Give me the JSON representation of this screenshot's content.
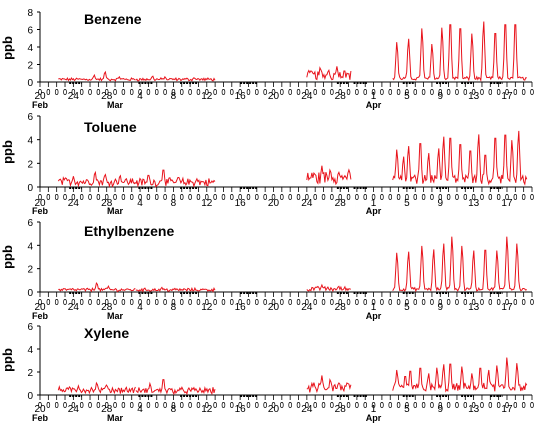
{
  "chart_data": [
    {
      "type": "line",
      "title": "Benzene",
      "ylabel": "ppb",
      "ylim": [
        0,
        8
      ],
      "yticks": [
        0,
        2,
        4,
        6,
        8
      ],
      "x_start_day": 20,
      "x_end_day": 59,
      "xtick_labels": [
        "20",
        "24",
        "28",
        "4",
        "8",
        "12",
        "16",
        "20",
        "24",
        "28",
        "1",
        "5",
        "9",
        "13",
        "17"
      ],
      "xtick_days": [
        20,
        24,
        28,
        32,
        36,
        40,
        44,
        48,
        52,
        56,
        60,
        64,
        68,
        72,
        76
      ],
      "month_labels": [
        "Feb",
        "Mar",
        "Apr"
      ],
      "month_days": [
        20,
        29,
        60
      ],
      "series": [
        {
          "color": "#e8131b",
          "segments": [
            {
              "start": 22.2,
              "end": 31.5,
              "base": 0.25,
              "noise": 0.25,
              "peaks": [
                [
                  26.5,
                  0.8
                ],
                [
                  27.8,
                  1.2
                ],
                [
                  29.5,
                  0.6
                ]
              ]
            },
            {
              "start": 31.5,
              "end": 41.0,
              "base": 0.25,
              "noise": 0.25,
              "peaks": [
                [
                  33.5,
                  0.7
                ],
                [
                  35.0,
                  0.6
                ],
                [
                  38.5,
                  0.5
                ]
              ]
            },
            {
              "start": 52.0,
              "end": 57.3,
              "base": 0.6,
              "noise": 0.8,
              "peaks": [
                [
                  52.6,
                  1.2
                ],
                [
                  53.6,
                  1.7
                ],
                [
                  54.6,
                  1.4
                ],
                [
                  55.6,
                  1.8
                ],
                [
                  56.5,
                  1.4
                ]
              ]
            },
            {
              "start": 62.3,
              "end": 78.5,
              "base": 0.35,
              "noise": 0.3,
              "peaks": [
                [
                  62.8,
                  4.6
                ],
                [
                  64.2,
                  5.0
                ],
                [
                  65.8,
                  6.2
                ],
                [
                  67.0,
                  4.4
                ],
                [
                  68.2,
                  6.3
                ],
                [
                  69.2,
                  7.3
                ],
                [
                  70.4,
                  6.8
                ],
                [
                  71.8,
                  5.6
                ],
                [
                  73.2,
                  7.0
                ],
                [
                  74.6,
                  6.2
                ],
                [
                  75.8,
                  7.3
                ],
                [
                  77.0,
                  7.3
                ]
              ]
            }
          ]
        }
      ]
    },
    {
      "type": "line",
      "title": "Toluene",
      "ylabel": "ppb",
      "ylim": [
        0,
        6
      ],
      "yticks": [
        0,
        2,
        4,
        6
      ],
      "x_start_day": 20,
      "x_end_day": 59,
      "xtick_labels": [
        "20",
        "24",
        "28",
        "4",
        "8",
        "12",
        "16",
        "20",
        "24",
        "28",
        "1",
        "5",
        "9",
        "13",
        "17"
      ],
      "xtick_days": [
        20,
        24,
        28,
        32,
        36,
        40,
        44,
        48,
        52,
        56,
        60,
        64,
        68,
        72,
        76
      ],
      "month_labels": [
        "Feb",
        "Mar",
        "Apr"
      ],
      "month_days": [
        20,
        29,
        60
      ],
      "series": [
        {
          "color": "#e8131b",
          "segments": [
            {
              "start": 22.2,
              "end": 31.5,
              "base": 0.35,
              "noise": 0.5,
              "peaks": [
                [
                  24.0,
                  0.9
                ],
                [
                  26.6,
                  1.3
                ],
                [
                  27.8,
                  1.1
                ],
                [
                  29.6,
                  1.0
                ]
              ]
            },
            {
              "start": 31.5,
              "end": 41.0,
              "base": 0.3,
              "noise": 0.5,
              "peaks": [
                [
                  33.0,
                  1.1
                ],
                [
                  34.8,
                  1.6
                ],
                [
                  36.6,
                  0.9
                ],
                [
                  38.8,
                  0.7
                ]
              ]
            },
            {
              "start": 52.0,
              "end": 57.3,
              "base": 0.6,
              "noise": 0.9,
              "peaks": [
                [
                  52.6,
                  1.2
                ],
                [
                  53.8,
                  1.8
                ],
                [
                  54.8,
                  1.5
                ],
                [
                  55.8,
                  1.3
                ],
                [
                  56.6,
                  1.0
                ]
              ]
            },
            {
              "start": 62.3,
              "end": 78.5,
              "base": 0.5,
              "noise": 0.6,
              "peaks": [
                [
                  62.8,
                  3.2
                ],
                [
                  63.6,
                  2.6
                ],
                [
                  64.2,
                  3.5
                ],
                [
                  65.6,
                  4.1
                ],
                [
                  66.6,
                  2.9
                ],
                [
                  67.8,
                  3.3
                ],
                [
                  68.4,
                  4.3
                ],
                [
                  69.2,
                  4.6
                ],
                [
                  70.4,
                  4.0
                ],
                [
                  71.6,
                  3.4
                ],
                [
                  72.6,
                  4.5
                ],
                [
                  73.4,
                  3.0
                ],
                [
                  74.6,
                  4.6
                ],
                [
                  75.8,
                  4.9
                ],
                [
                  76.6,
                  4.0
                ],
                [
                  77.4,
                  4.8
                ]
              ]
            }
          ]
        }
      ]
    },
    {
      "type": "line",
      "title": "Ethylbenzene",
      "ylabel": "ppb",
      "ylim": [
        0,
        6
      ],
      "yticks": [
        0,
        2,
        4,
        6
      ],
      "x_start_day": 20,
      "x_end_day": 59,
      "xtick_labels": [
        "20",
        "24",
        "28",
        "4",
        "8",
        "12",
        "16",
        "20",
        "24",
        "28",
        "1",
        "5",
        "9",
        "13",
        "17"
      ],
      "xtick_days": [
        20,
        24,
        28,
        32,
        36,
        40,
        44,
        48,
        52,
        56,
        60,
        64,
        68,
        72,
        76
      ],
      "month_labels": [
        "Feb",
        "Mar",
        "Apr"
      ],
      "month_days": [
        20,
        29,
        60
      ],
      "series": [
        {
          "color": "#e8131b",
          "segments": [
            {
              "start": 22.2,
              "end": 31.5,
              "base": 0.15,
              "noise": 0.2,
              "peaks": [
                [
                  26.8,
                  0.8
                ],
                [
                  28.2,
                  0.5
                ]
              ]
            },
            {
              "start": 31.5,
              "end": 41.0,
              "base": 0.15,
              "noise": 0.2,
              "peaks": [
                [
                  34.6,
                  0.4
                ]
              ]
            },
            {
              "start": 52.0,
              "end": 57.3,
              "base": 0.2,
              "noise": 0.3,
              "peaks": [
                [
                  53.8,
                  0.6
                ],
                [
                  55.8,
                  0.5
                ]
              ]
            },
            {
              "start": 62.3,
              "end": 78.5,
              "base": 0.2,
              "noise": 0.2,
              "peaks": [
                [
                  62.8,
                  3.4
                ],
                [
                  64.2,
                  3.5
                ],
                [
                  65.8,
                  4.0
                ],
                [
                  67.2,
                  3.7
                ],
                [
                  68.4,
                  4.2
                ],
                [
                  69.4,
                  4.8
                ],
                [
                  70.6,
                  4.0
                ],
                [
                  72.0,
                  3.6
                ],
                [
                  73.4,
                  4.0
                ],
                [
                  74.8,
                  3.6
                ],
                [
                  76.0,
                  4.8
                ],
                [
                  77.2,
                  4.2
                ]
              ]
            }
          ]
        }
      ]
    },
    {
      "type": "line",
      "title": "Xylene",
      "ylabel": "ppb",
      "ylim": [
        0,
        6
      ],
      "yticks": [
        0,
        2,
        4,
        6
      ],
      "x_start_day": 20,
      "x_end_day": 59,
      "xtick_labels": [
        "20",
        "24",
        "28",
        "4",
        "8",
        "12",
        "16",
        "20",
        "24",
        "28",
        "1",
        "5",
        "9",
        "13",
        "17"
      ],
      "xtick_days": [
        20,
        24,
        28,
        32,
        36,
        40,
        44,
        48,
        52,
        56,
        60,
        64,
        68,
        72,
        76
      ],
      "month_labels": [
        "Feb",
        "Mar",
        "Apr"
      ],
      "month_days": [
        20,
        29,
        60
      ],
      "series": [
        {
          "color": "#e8131b",
          "segments": [
            {
              "start": 22.2,
              "end": 31.5,
              "base": 0.35,
              "noise": 0.4,
              "peaks": [
                [
                  24.6,
                  0.8
                ],
                [
                  26.8,
                  1.1
                ],
                [
                  28.0,
                  0.9
                ]
              ]
            },
            {
              "start": 31.5,
              "end": 41.0,
              "base": 0.3,
              "noise": 0.4,
              "peaks": [
                [
                  33.2,
                  1.0
                ],
                [
                  34.8,
                  1.5
                ],
                [
                  36.8,
                  0.6
                ]
              ]
            },
            {
              "start": 52.0,
              "end": 57.3,
              "base": 0.5,
              "noise": 0.7,
              "peaks": [
                [
                  52.8,
                  0.9
                ],
                [
                  53.8,
                  1.7
                ],
                [
                  54.8,
                  1.4
                ],
                [
                  55.8,
                  1.1
                ],
                [
                  56.6,
                  0.8
                ]
              ]
            },
            {
              "start": 62.3,
              "end": 78.5,
              "base": 0.5,
              "noise": 0.6,
              "peaks": [
                [
                  62.8,
                  2.2
                ],
                [
                  63.8,
                  1.8
                ],
                [
                  64.4,
                  2.3
                ],
                [
                  65.6,
                  2.6
                ],
                [
                  66.6,
                  1.9
                ],
                [
                  67.6,
                  2.4
                ],
                [
                  68.4,
                  2.7
                ],
                [
                  69.2,
                  3.0
                ],
                [
                  70.6,
                  2.5
                ],
                [
                  71.8,
                  1.9
                ],
                [
                  72.8,
                  2.6
                ],
                [
                  73.8,
                  2.2
                ],
                [
                  74.8,
                  2.6
                ],
                [
                  76.0,
                  3.3
                ],
                [
                  77.2,
                  2.8
                ]
              ]
            }
          ]
        }
      ]
    }
  ]
}
